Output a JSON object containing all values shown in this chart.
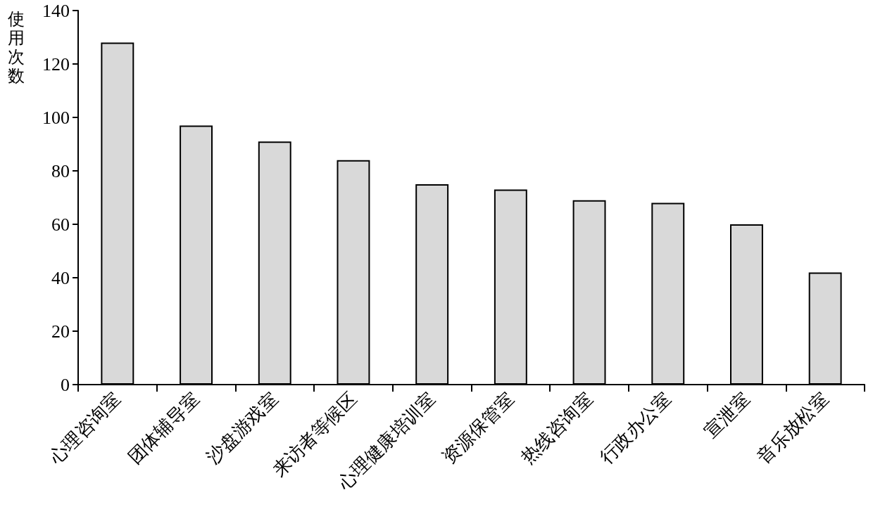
{
  "chart_data": {
    "type": "bar",
    "ylabel": "使用次数",
    "categories": [
      "心理咨询室",
      "团体辅导室",
      "沙盘游戏室",
      "来访者等候区",
      "心理健康培训室",
      "资源保管室",
      "热线咨询室",
      "行政办公室",
      "宣泄室",
      "音乐放松室"
    ],
    "values": [
      128,
      97,
      91,
      84,
      75,
      73,
      69,
      68,
      60,
      42
    ],
    "color": "#d9d9d9",
    "ylim": [
      0,
      140
    ],
    "yticks": [
      0,
      20,
      40,
      60,
      80,
      100,
      120,
      140
    ],
    "grid": false
  }
}
